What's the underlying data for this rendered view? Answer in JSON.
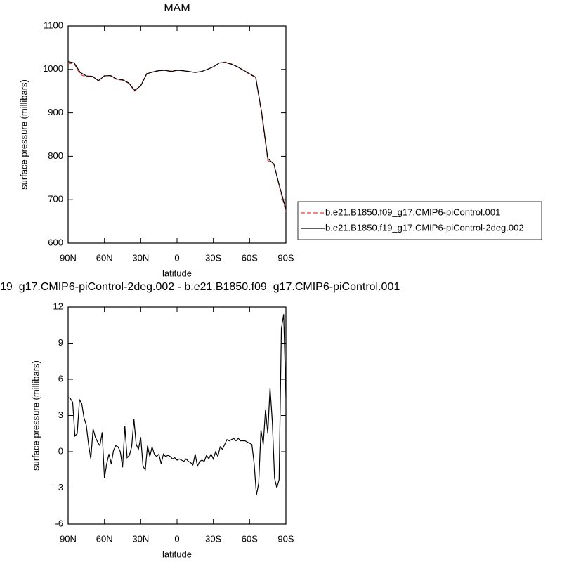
{
  "chart_data": [
    {
      "type": "line",
      "title": "MAM",
      "x_label": "latitude",
      "y_label": "surface pressure (millibars)",
      "x": [
        90,
        85,
        80,
        75,
        70,
        65,
        60,
        55,
        50,
        45,
        40,
        35,
        30,
        25,
        20,
        15,
        10,
        5,
        0,
        -5,
        -10,
        -15,
        -20,
        -25,
        -30,
        -35,
        -40,
        -45,
        -50,
        -55,
        -60,
        -65,
        -70,
        -75,
        -80,
        -85,
        -90
      ],
      "series": [
        {
          "name": "b.e21.B1850.f09_g17.CMIP6-piControl.001",
          "color": "#e8413a",
          "dash": true,
          "values": [
            1014,
            1013,
            988,
            983,
            985,
            973,
            986,
            985,
            977,
            975,
            968,
            950,
            963,
            991,
            994,
            998,
            998,
            996,
            998,
            997,
            995,
            993,
            995,
            1000,
            1006,
            1015,
            1017,
            1013,
            1006,
            997,
            989,
            981,
            895,
            790,
            783,
            725,
            672
          ]
        },
        {
          "name": "b.e21.B1850.f19_g17.CMIP6-piControl-2deg.002",
          "color": "#000000",
          "dash": false,
          "values": [
            1018,
            1015,
            993,
            985,
            984,
            974,
            985,
            986,
            978,
            976,
            969,
            952,
            962,
            990,
            994,
            997,
            998,
            995,
            998,
            997,
            995,
            993,
            995,
            1000,
            1006,
            1015,
            1016,
            1012,
            1006,
            998,
            990,
            982,
            900,
            795,
            782,
            728,
            678
          ]
        }
      ],
      "xlim": [
        90,
        -90
      ],
      "xticks": [
        {
          "value": 90,
          "label": "90N"
        },
        {
          "value": 60,
          "label": "60N"
        },
        {
          "value": 30,
          "label": "30N"
        },
        0,
        {
          "value": -30,
          "label": "30S"
        },
        {
          "value": -60,
          "label": "60S"
        },
        {
          "value": -90,
          "label": "90S"
        }
      ],
      "ylim": [
        600,
        1100
      ],
      "yticks": [
        600,
        700,
        800,
        900,
        1000,
        1100
      ],
      "legend": "right"
    },
    {
      "type": "line",
      "title": "19_g17.CMIP6-piControl-2deg.002 - b.e21.B1850.f09_g17.CMIP6-piControl.001",
      "x_label": "latitude",
      "y_label": "surface pressure (millibars)",
      "x": [
        90,
        88.125,
        86.25,
        84.375,
        82.5,
        80.625,
        78.75,
        76.875,
        75,
        73.125,
        71.25,
        69.375,
        67.5,
        65.625,
        63.75,
        61.875,
        60,
        58.125,
        56.25,
        54.375,
        52.5,
        50.625,
        48.75,
        46.875,
        45,
        43.125,
        41.25,
        39.375,
        37.5,
        35.625,
        33.75,
        31.875,
        30,
        28.125,
        26.25,
        24.375,
        22.5,
        20.625,
        18.75,
        16.875,
        15,
        13.125,
        11.25,
        9.375,
        7.5,
        5.625,
        3.75,
        1.875,
        0,
        -1.875,
        -3.75,
        -5.625,
        -7.5,
        -9.375,
        -11.25,
        -13.125,
        -15,
        -16.875,
        -18.75,
        -20.625,
        -22.5,
        -24.375,
        -26.25,
        -28.125,
        -30,
        -31.875,
        -33.75,
        -35.625,
        -37.5,
        -39.375,
        -41.25,
        -43.125,
        -45,
        -46.875,
        -48.75,
        -50.625,
        -52.5,
        -54.375,
        -56.25,
        -58.125,
        -60,
        -61.875,
        -63.75,
        -65.625,
        -67.5,
        -69.375,
        -71.25,
        -73.125,
        -75,
        -76.875,
        -78.75,
        -80.625,
        -82.5,
        -84.375,
        -86.25,
        -88.125,
        -90
      ],
      "series": [
        {
          "color": "#000000",
          "dash": false,
          "values": [
            4.5,
            4.4,
            4.1,
            1.3,
            1.5,
            4.3,
            4.0,
            2.8,
            2.2,
            0.6,
            -0.6,
            1.9,
            1.2,
            0.8,
            0.5,
            1.6,
            -2.2,
            -1.0,
            -0.2,
            -1.0,
            0.1,
            0.5,
            0.4,
            0,
            -1.3,
            2.1,
            -0.5,
            -0.3,
            0.4,
            2.7,
            0.6,
            0.2,
            1.2,
            -1.2,
            -1.5,
            0.5,
            -0.4,
            0.4,
            -0.2,
            -0.4,
            -0.2,
            -1.0,
            -0.2,
            -0.4,
            -0.3,
            -0.4,
            -0.6,
            -0.5,
            -0.7,
            -0.6,
            -0.7,
            -0.8,
            -0.6,
            -0.8,
            -0.9,
            -1.1,
            -0.2,
            -1.2,
            -0.8,
            -0.7,
            -0.8,
            -0.3,
            -0.6,
            -0.2,
            -0.6,
            0.0,
            -0.4,
            0.4,
            0.2,
            0.6,
            1.0,
            0.9,
            1.0,
            1.1,
            0.9,
            1.1,
            0.9,
            0.9,
            0.9,
            0.8,
            0.7,
            0.6,
            -1.0,
            -3.6,
            -2.6,
            1.8,
            0.6,
            3.5,
            1.5,
            5.3,
            2.5,
            -2.2,
            -3.0,
            -2.3,
            10.2,
            11.4,
            4.5
          ]
        }
      ],
      "xlim": [
        90,
        -90
      ],
      "xticks": [
        {
          "value": 90,
          "label": "90N"
        },
        {
          "value": 60,
          "label": "60N"
        },
        {
          "value": 30,
          "label": "30N"
        },
        0,
        {
          "value": -30,
          "label": "30S"
        },
        {
          "value": -60,
          "label": "60S"
        },
        {
          "value": -90,
          "label": "90S"
        }
      ],
      "ylim": [
        -6,
        12
      ],
      "yticks": [
        -6,
        -3,
        0,
        3,
        6,
        9,
        12
      ]
    }
  ]
}
